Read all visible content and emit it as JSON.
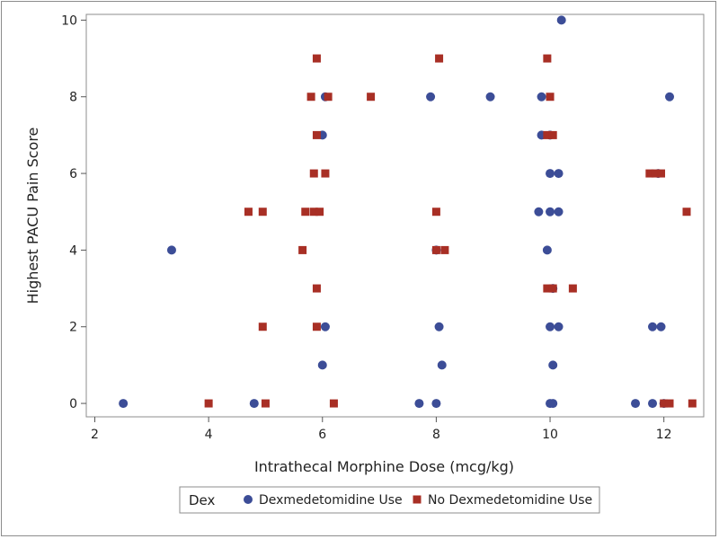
{
  "chart_data": {
    "type": "scatter",
    "xlabel": "Intrathecal Morphine Dose (mcg/kg)",
    "ylabel": "Highest PACU Pain Score",
    "xlim": [
      1.85,
      12.7
    ],
    "ylim": [
      -0.35,
      10.15
    ],
    "xticks": [
      2,
      4,
      6,
      8,
      10,
      12
    ],
    "yticks": [
      0,
      2,
      4,
      6,
      8,
      10
    ],
    "grid": false,
    "legend": {
      "title": "Dex",
      "placement": "bottom-center",
      "entries": [
        {
          "label": "Dexmedetomidine Use",
          "marker": "circle",
          "color": "#3c4d97"
        },
        {
          "label": "No Dexmedetomidine Use",
          "marker": "square",
          "color": "#a82f25"
        }
      ]
    },
    "series": [
      {
        "name": "Dexmedetomidine Use",
        "marker": "circle",
        "color": "#3c4d97",
        "points": [
          [
            2.5,
            0
          ],
          [
            4.8,
            0
          ],
          [
            7.7,
            0
          ],
          [
            8.0,
            0
          ],
          [
            10.0,
            0
          ],
          [
            10.05,
            0
          ],
          [
            11.5,
            0
          ],
          [
            11.8,
            0
          ],
          [
            12.0,
            0
          ],
          [
            6.0,
            1
          ],
          [
            8.1,
            1
          ],
          [
            10.05,
            1
          ],
          [
            6.05,
            2
          ],
          [
            8.05,
            2
          ],
          [
            10.0,
            2
          ],
          [
            10.15,
            2
          ],
          [
            11.8,
            2
          ],
          [
            11.95,
            2
          ],
          [
            10.05,
            3
          ],
          [
            3.35,
            4
          ],
          [
            8.0,
            4
          ],
          [
            9.95,
            4
          ],
          [
            9.8,
            5
          ],
          [
            10.0,
            5
          ],
          [
            10.15,
            5
          ],
          [
            10.0,
            6
          ],
          [
            10.15,
            6
          ],
          [
            11.9,
            6
          ],
          [
            6.0,
            7
          ],
          [
            9.85,
            7
          ],
          [
            10.0,
            7
          ],
          [
            6.05,
            8
          ],
          [
            7.9,
            8
          ],
          [
            8.95,
            8
          ],
          [
            9.85,
            8
          ],
          [
            12.1,
            8
          ],
          [
            10.2,
            10
          ]
        ]
      },
      {
        "name": "No Dexmedetomidine Use",
        "marker": "square",
        "color": "#a82f25",
        "points": [
          [
            4.0,
            0
          ],
          [
            5.0,
            0
          ],
          [
            6.2,
            0
          ],
          [
            12.0,
            0
          ],
          [
            12.1,
            0
          ],
          [
            12.5,
            0
          ],
          [
            4.95,
            2
          ],
          [
            5.9,
            2
          ],
          [
            5.9,
            3
          ],
          [
            9.95,
            3
          ],
          [
            10.05,
            3
          ],
          [
            10.4,
            3
          ],
          [
            5.65,
            4
          ],
          [
            8.0,
            4
          ],
          [
            8.15,
            4
          ],
          [
            4.7,
            5
          ],
          [
            4.95,
            5
          ],
          [
            5.7,
            5
          ],
          [
            5.85,
            5
          ],
          [
            5.95,
            5
          ],
          [
            8.0,
            5
          ],
          [
            12.4,
            5
          ],
          [
            5.85,
            6
          ],
          [
            6.05,
            6
          ],
          [
            11.75,
            6
          ],
          [
            11.85,
            6
          ],
          [
            11.95,
            6
          ],
          [
            5.9,
            7
          ],
          [
            9.95,
            7
          ],
          [
            10.05,
            7
          ],
          [
            5.8,
            8
          ],
          [
            6.1,
            8
          ],
          [
            6.85,
            8
          ],
          [
            10.0,
            8
          ],
          [
            5.9,
            9
          ],
          [
            8.05,
            9
          ],
          [
            9.95,
            9
          ]
        ]
      }
    ]
  }
}
